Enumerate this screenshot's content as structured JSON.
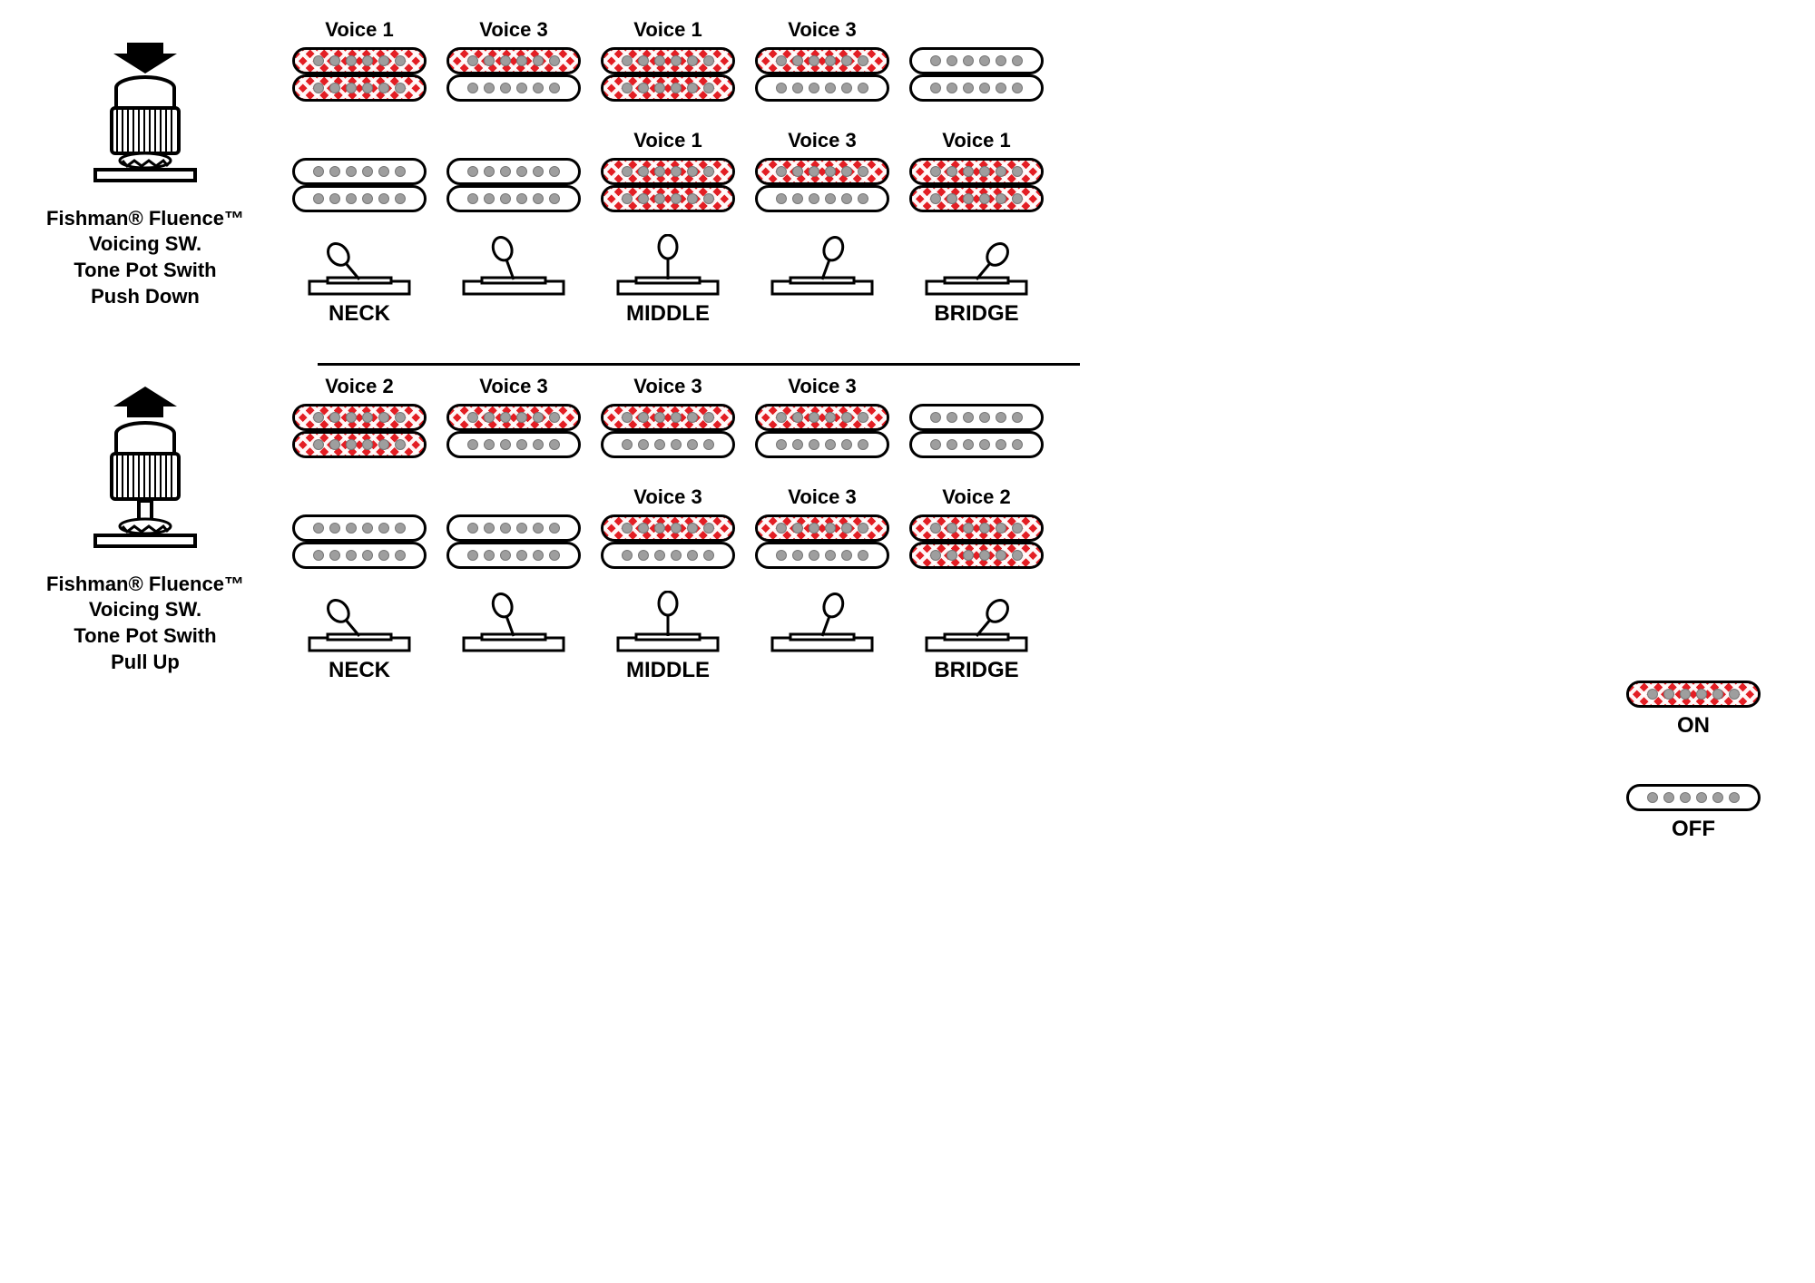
{
  "colors": {
    "active": "#e31e24",
    "pole": "#9e9e9e",
    "stroke": "#000000",
    "background": "#ffffff"
  },
  "typography": {
    "voice_label_fontsize": 22,
    "position_label_fontsize": 24,
    "knob_label_fontsize": 22,
    "legend_label_fontsize": 24,
    "weight": "bold"
  },
  "coil": {
    "poles": 6,
    "width": 148,
    "height": 30,
    "border_radius": 15
  },
  "pushdown": {
    "arrow": "down",
    "label_lines": [
      "Fishman® Fluence™",
      "Voicing SW.",
      "Tone Pot Swith",
      "Push Down"
    ],
    "neck_row": [
      {
        "voice": "Voice 1",
        "top": true,
        "bottom": true
      },
      {
        "voice": "Voice 3",
        "top": true,
        "bottom": false
      },
      {
        "voice": "Voice 1",
        "top": true,
        "bottom": true
      },
      {
        "voice": "Voice 3",
        "top": true,
        "bottom": false
      },
      {
        "voice": "",
        "top": false,
        "bottom": false
      }
    ],
    "bridge_row": [
      {
        "voice": "",
        "top": false,
        "bottom": false
      },
      {
        "voice": "",
        "top": false,
        "bottom": false
      },
      {
        "voice": "Voice 1",
        "top": true,
        "bottom": true
      },
      {
        "voice": "Voice 3",
        "top": true,
        "bottom": false
      },
      {
        "voice": "Voice 1",
        "top": true,
        "bottom": true
      }
    ],
    "positions": [
      "NECK",
      "",
      "MIDDLE",
      "",
      "BRIDGE"
    ],
    "switch_angles": [
      -40,
      -20,
      0,
      20,
      40
    ]
  },
  "pullup": {
    "arrow": "up",
    "label_lines": [
      "Fishman® Fluence™",
      "Voicing SW.",
      "Tone Pot Swith",
      "Pull Up"
    ],
    "neck_row": [
      {
        "voice": "Voice 2",
        "top": true,
        "bottom": true
      },
      {
        "voice": "Voice 3",
        "top": true,
        "bottom": false
      },
      {
        "voice": "Voice 3",
        "top": true,
        "bottom": false
      },
      {
        "voice": "Voice 3",
        "top": true,
        "bottom": false
      },
      {
        "voice": "",
        "top": false,
        "bottom": false
      }
    ],
    "bridge_row": [
      {
        "voice": "",
        "top": false,
        "bottom": false
      },
      {
        "voice": "",
        "top": false,
        "bottom": false
      },
      {
        "voice": "Voice 3",
        "top": true,
        "bottom": false
      },
      {
        "voice": "Voice 3",
        "top": true,
        "bottom": false
      },
      {
        "voice": "Voice 2",
        "top": true,
        "bottom": true
      }
    ],
    "positions": [
      "NECK",
      "",
      "MIDDLE",
      "",
      "BRIDGE"
    ],
    "switch_angles": [
      -40,
      -20,
      0,
      20,
      40
    ]
  },
  "legend": {
    "on": "ON",
    "off": "OFF"
  }
}
